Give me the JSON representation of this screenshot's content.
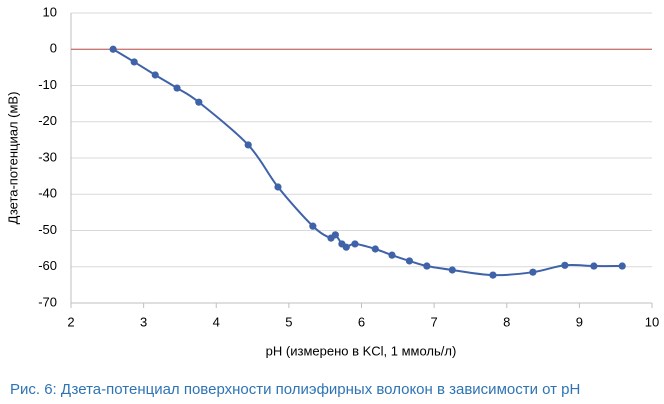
{
  "chart_data": {
    "type": "scatter-line",
    "x": [
      2.58,
      2.87,
      3.16,
      3.46,
      3.76,
      4.44,
      4.85,
      5.33,
      5.58,
      5.64,
      5.73,
      5.79,
      5.91,
      6.19,
      6.42,
      6.66,
      6.9,
      7.25,
      7.81,
      8.36,
      8.8,
      9.2,
      9.59
    ],
    "values": [
      0,
      -3.5,
      -7.1,
      -10.7,
      -14.6,
      -26.4,
      -38,
      -48.8,
      -52.1,
      -51.2,
      -53.7,
      -54.6,
      -53.7,
      -55.1,
      -56.8,
      -58.4,
      -59.8,
      -60.9,
      -62.3,
      -61.5,
      -59.6,
      -59.8,
      -59.8
    ],
    "color": "#3f62a8",
    "hline": 0,
    "hline_color": "#c0504d",
    "xlim": [
      2,
      10
    ],
    "xticks": [
      2,
      3,
      4,
      5,
      6,
      7,
      8,
      9,
      10
    ],
    "ylim": [
      -70,
      10
    ],
    "yticks": [
      -70,
      -60,
      -50,
      -40,
      -30,
      -20,
      -10,
      0,
      10
    ],
    "grid": true,
    "xlabel": "pH (измерено в KCl, 1 ммоль/л)",
    "ylabel": "Дзета-потенциал (мВ)",
    "caption": "Рис. 6: Дзета-потенциал поверхности полиэфирных волокон в зависимости от pH"
  }
}
